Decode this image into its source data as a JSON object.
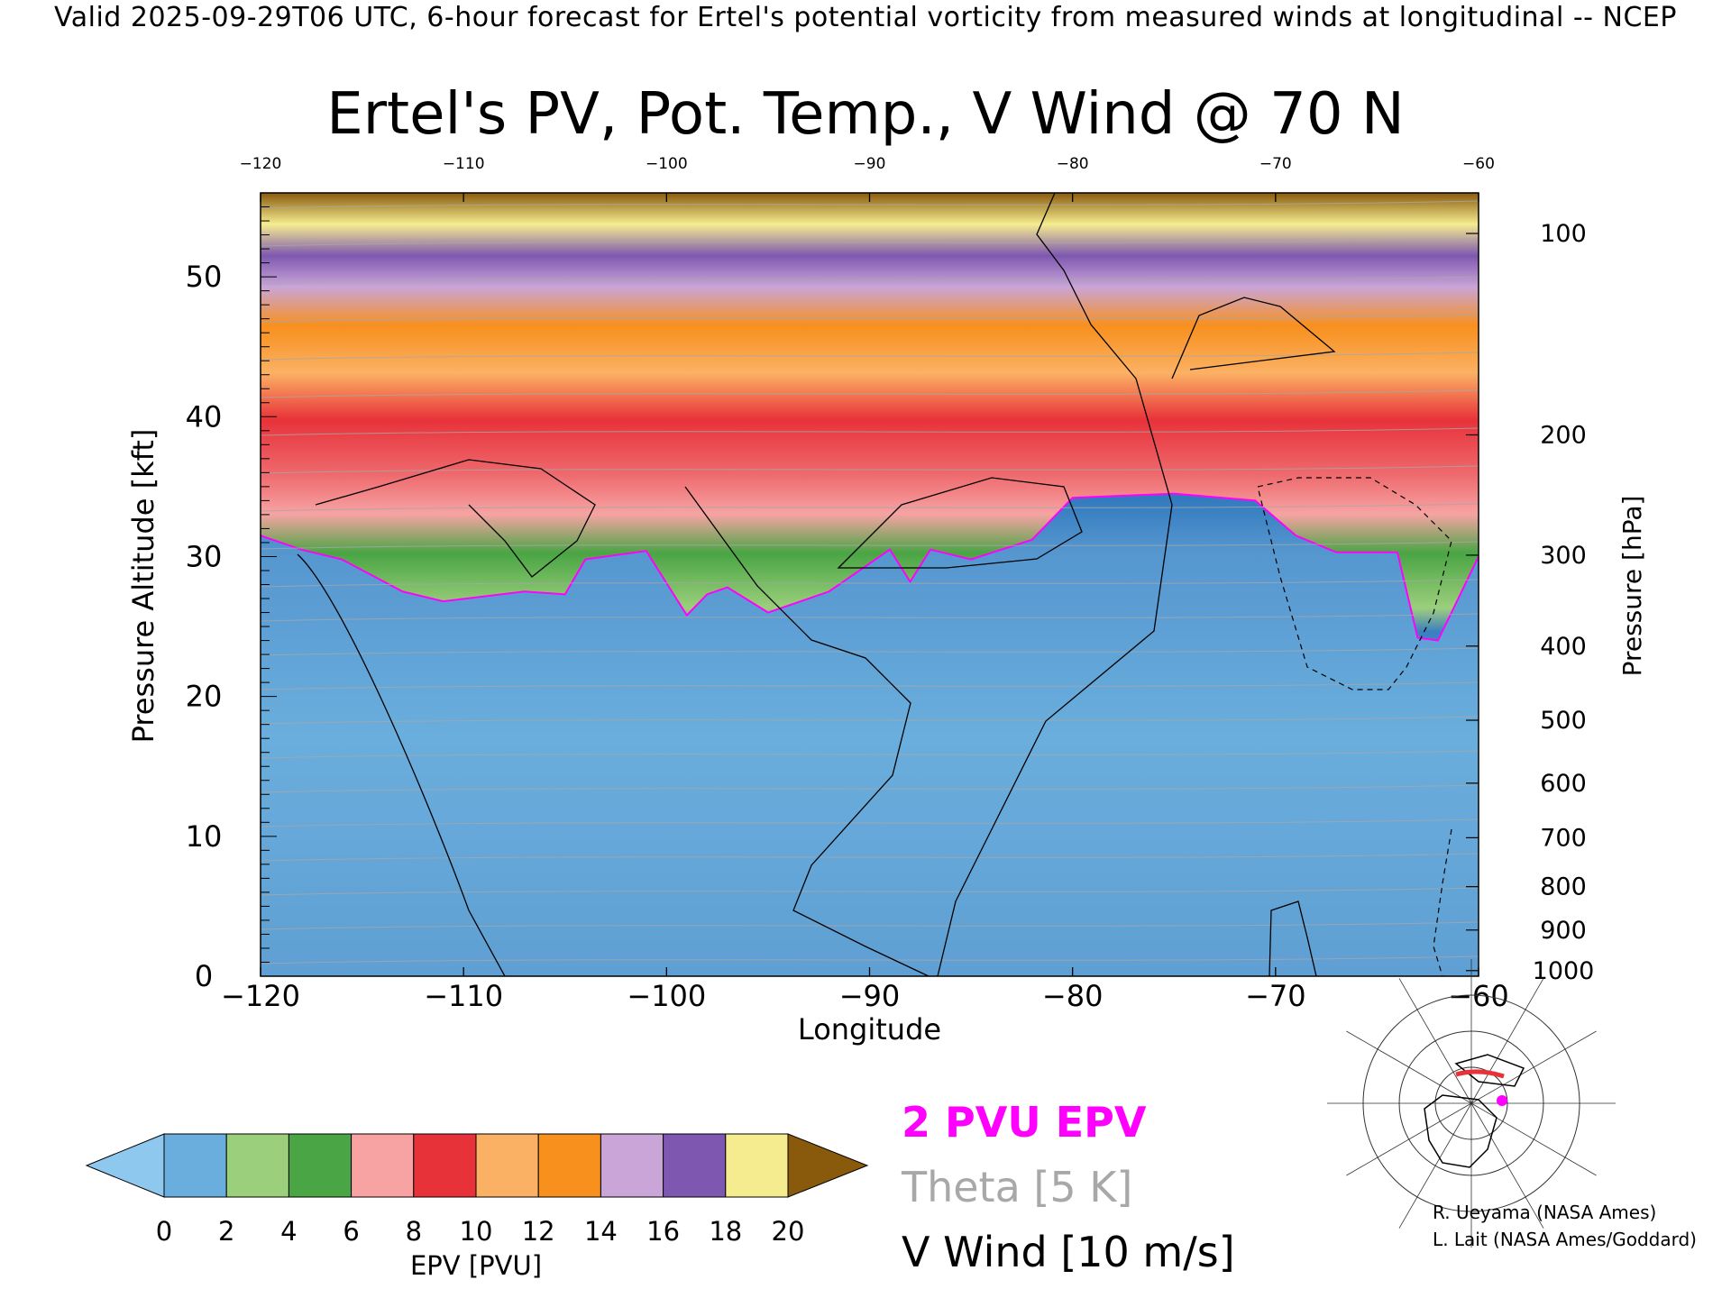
{
  "header": "Valid 2025-09-29T06 UTC, 6-hour forecast for Ertel's potential vorticity from measured winds at longitudinal -- NCEP",
  "chart_data": {
    "type": "heatmap",
    "title": "Ertel's PV, Pot. Temp., V Wind @ 70 N",
    "xlabel": "Longitude",
    "ylabel": "Pressure Altitude [kft]",
    "y2label": "Pressure [hPa]",
    "xlim": [
      -120,
      -60
    ],
    "ylim": [
      0,
      56
    ],
    "x_ticks": [
      -120,
      -110,
      -100,
      -90,
      -80,
      -70,
      -60
    ],
    "y_ticks": [
      0,
      10,
      20,
      30,
      40,
      50
    ],
    "pressure_ticks": [
      {
        "hpa": 100,
        "kft": 53.1
      },
      {
        "hpa": 200,
        "kft": 38.7
      },
      {
        "hpa": 300,
        "kft": 30.1
      },
      {
        "hpa": 400,
        "kft": 23.6
      },
      {
        "hpa": 500,
        "kft": 18.3
      },
      {
        "hpa": 600,
        "kft": 13.8
      },
      {
        "hpa": 700,
        "kft": 9.9
      },
      {
        "hpa": 800,
        "kft": 6.4
      },
      {
        "hpa": 900,
        "kft": 3.3
      },
      {
        "hpa": 1000,
        "kft": 0.4
      }
    ],
    "epv_2pvu_kft": [
      [
        -120,
        31.5
      ],
      [
        -118,
        30.5
      ],
      [
        -116,
        29.8
      ],
      [
        -113,
        27.5
      ],
      [
        -111,
        26.8
      ],
      [
        -107,
        27.5
      ],
      [
        -105,
        27.3
      ],
      [
        -104,
        29.8
      ],
      [
        -101,
        30.4
      ],
      [
        -99,
        25.8
      ],
      [
        -98,
        27.3
      ],
      [
        -97,
        27.8
      ],
      [
        -95,
        26.0
      ],
      [
        -92,
        27.5
      ],
      [
        -90,
        29.5
      ],
      [
        -89,
        30.5
      ],
      [
        -88,
        28.2
      ],
      [
        -87,
        30.5
      ],
      [
        -85,
        29.8
      ],
      [
        -82,
        31.2
      ],
      [
        -80,
        34.2
      ],
      [
        -75,
        34.5
      ],
      [
        -71,
        34.0
      ],
      [
        -69,
        31.5
      ],
      [
        -67,
        30.3
      ],
      [
        -64,
        30.3
      ],
      [
        -63,
        24.2
      ],
      [
        -62,
        24.0
      ],
      [
        -60,
        30.0
      ]
    ],
    "colorbar": {
      "label": "EPV [PVU]",
      "ticks": [
        0,
        2,
        4,
        6,
        8,
        10,
        12,
        14,
        16,
        18,
        20
      ],
      "colors": [
        "#8ec8ee",
        "#6aaedd",
        "#9ccf7c",
        "#4aa544",
        "#f7a3a3",
        "#e8323a",
        "#fbb164",
        "#f8901e",
        "#c9a5d8",
        "#7e58b0",
        "#f5ec90",
        "#8a5a0c"
      ]
    },
    "legend": [
      {
        "label": "2 PVU EPV",
        "color": "#ff00ff"
      },
      {
        "label": "Theta [5 K]",
        "color": "#a8a8a8"
      },
      {
        "label": "V Wind [10 m/s]",
        "color": "#000000"
      }
    ]
  },
  "inset_map": {
    "icon": "polar-stereographic-map-icon",
    "marker_color": "#ff00ff",
    "section_color": "#e8323a"
  },
  "credits": [
    "R. Ueyama (NASA Ames)",
    "L. Lait (NASA Ames/Goddard)"
  ]
}
